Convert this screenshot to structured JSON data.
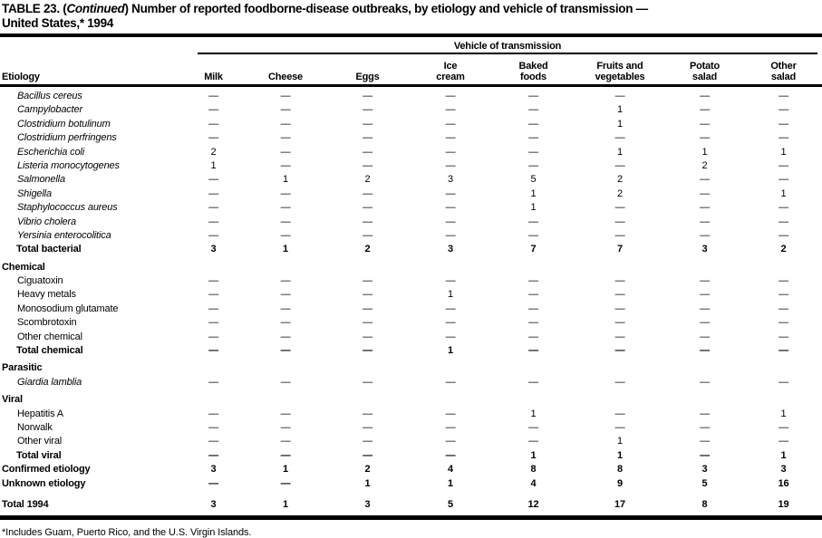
{
  "title": {
    "prefix": "TABLE 23. (",
    "continued": "Continued",
    "rest": ") Number of reported foodborne-disease outbreaks, by etiology and vehicle of transmission —",
    "line2": "United States,* 1994"
  },
  "table": {
    "spanner": "Vehicle of transmission",
    "etiology_header": "Etiology",
    "columns": [
      {
        "lines": [
          "Milk"
        ]
      },
      {
        "lines": [
          "Cheese"
        ]
      },
      {
        "lines": [
          "Eggs"
        ]
      },
      {
        "lines": [
          "Ice",
          "cream"
        ]
      },
      {
        "lines": [
          "Baked",
          "foods"
        ]
      },
      {
        "lines": [
          "Fruits and",
          "vegetables"
        ]
      },
      {
        "lines": [
          "Potato",
          "salad"
        ]
      },
      {
        "lines": [
          "Other",
          "salad"
        ]
      }
    ],
    "rows": [
      {
        "label": "Bacillus cereus",
        "style": "species",
        "values": [
          "—",
          "—",
          "—",
          "—",
          "—",
          "—",
          "—",
          "—"
        ]
      },
      {
        "label": "Campylobacter",
        "style": "species",
        "values": [
          "—",
          "—",
          "—",
          "—",
          "—",
          "1",
          "—",
          "—"
        ]
      },
      {
        "label": "Clostridium botulinum",
        "style": "species",
        "values": [
          "—",
          "—",
          "—",
          "—",
          "—",
          "1",
          "—",
          "—"
        ]
      },
      {
        "label": "Clostridium perfringens",
        "style": "species",
        "values": [
          "—",
          "—",
          "—",
          "—",
          "—",
          "—",
          "—",
          "—"
        ]
      },
      {
        "label": "Escherichia coli",
        "style": "species",
        "values": [
          "2",
          "—",
          "—",
          "—",
          "—",
          "1",
          "1",
          "1"
        ]
      },
      {
        "label": "Listeria monocytogenes",
        "style": "species",
        "values": [
          "1",
          "—",
          "—",
          "—",
          "—",
          "—",
          "2",
          "—"
        ]
      },
      {
        "label": "Salmonella",
        "style": "species",
        "values": [
          "—",
          "1",
          "2",
          "3",
          "5",
          "2",
          "—",
          "—"
        ]
      },
      {
        "label": "Shigella",
        "style": "species",
        "values": [
          "—",
          "—",
          "—",
          "—",
          "1",
          "2",
          "—",
          "1"
        ]
      },
      {
        "label": "Staphylococcus aureus",
        "style": "species",
        "values": [
          "—",
          "—",
          "—",
          "—",
          "1",
          "—",
          "—",
          "—"
        ]
      },
      {
        "label": "Vibrio cholera",
        "style": "species",
        "values": [
          "—",
          "—",
          "—",
          "—",
          "—",
          "—",
          "—",
          "—"
        ]
      },
      {
        "label": "Yersinia enterocolitica",
        "style": "species",
        "values": [
          "—",
          "—",
          "—",
          "—",
          "—",
          "—",
          "—",
          "—"
        ]
      },
      {
        "label": "Total bacterial",
        "style": "total",
        "values": [
          "3",
          "1",
          "2",
          "3",
          "7",
          "7",
          "3",
          "2"
        ]
      },
      {
        "label": "Chemical",
        "style": "section",
        "values": null
      },
      {
        "label": "Ciguatoxin",
        "style": "plain",
        "values": [
          "—",
          "—",
          "—",
          "—",
          "—",
          "—",
          "—",
          "—"
        ]
      },
      {
        "label": "Heavy metals",
        "style": "plain",
        "values": [
          "—",
          "—",
          "—",
          "1",
          "—",
          "—",
          "—",
          "—"
        ]
      },
      {
        "label": "Monosodium glutamate",
        "style": "plain",
        "values": [
          "—",
          "—",
          "—",
          "—",
          "—",
          "—",
          "—",
          "—"
        ]
      },
      {
        "label": "Scombrotoxin",
        "style": "plain",
        "values": [
          "—",
          "—",
          "—",
          "—",
          "—",
          "—",
          "—",
          "—"
        ]
      },
      {
        "label": "Other chemical",
        "style": "plain",
        "values": [
          "—",
          "—",
          "—",
          "—",
          "—",
          "—",
          "—",
          "—"
        ]
      },
      {
        "label": "Total chemical",
        "style": "total",
        "values": [
          "—",
          "—",
          "—",
          "1",
          "—",
          "—",
          "—",
          "—"
        ]
      },
      {
        "label": "Parasitic",
        "style": "section",
        "values": null
      },
      {
        "label": "Giardia lamblia",
        "style": "species",
        "values": [
          "—",
          "—",
          "—",
          "—",
          "—",
          "—",
          "—",
          "—"
        ]
      },
      {
        "label": "Viral",
        "style": "section",
        "values": null
      },
      {
        "label": "Hepatitis A",
        "style": "plain",
        "values": [
          "—",
          "—",
          "—",
          "—",
          "1",
          "—",
          "—",
          "1"
        ]
      },
      {
        "label": "Norwalk",
        "style": "plain",
        "values": [
          "—",
          "—",
          "—",
          "—",
          "—",
          "—",
          "—",
          "—"
        ]
      },
      {
        "label": "Other viral",
        "style": "plain",
        "values": [
          "—",
          "—",
          "—",
          "—",
          "—",
          "1",
          "—",
          "—"
        ]
      },
      {
        "label": "Total viral",
        "style": "total",
        "values": [
          "—",
          "—",
          "—",
          "—",
          "1",
          "1",
          "—",
          "1"
        ]
      },
      {
        "label": "Confirmed etiology",
        "style": "summary",
        "values": [
          "3",
          "1",
          "2",
          "4",
          "8",
          "8",
          "3",
          "3"
        ]
      },
      {
        "label": "Unknown etiology",
        "style": "summary",
        "values": [
          "—",
          "—",
          "1",
          "1",
          "4",
          "9",
          "5",
          "16"
        ]
      },
      {
        "label": "Total 1994",
        "style": "grand",
        "values": [
          "3",
          "1",
          "3",
          "5",
          "12",
          "17",
          "8",
          "19"
        ]
      }
    ]
  },
  "footnote": "*Includes Guam, Puerto Rico, and the U.S. Virgin Islands."
}
